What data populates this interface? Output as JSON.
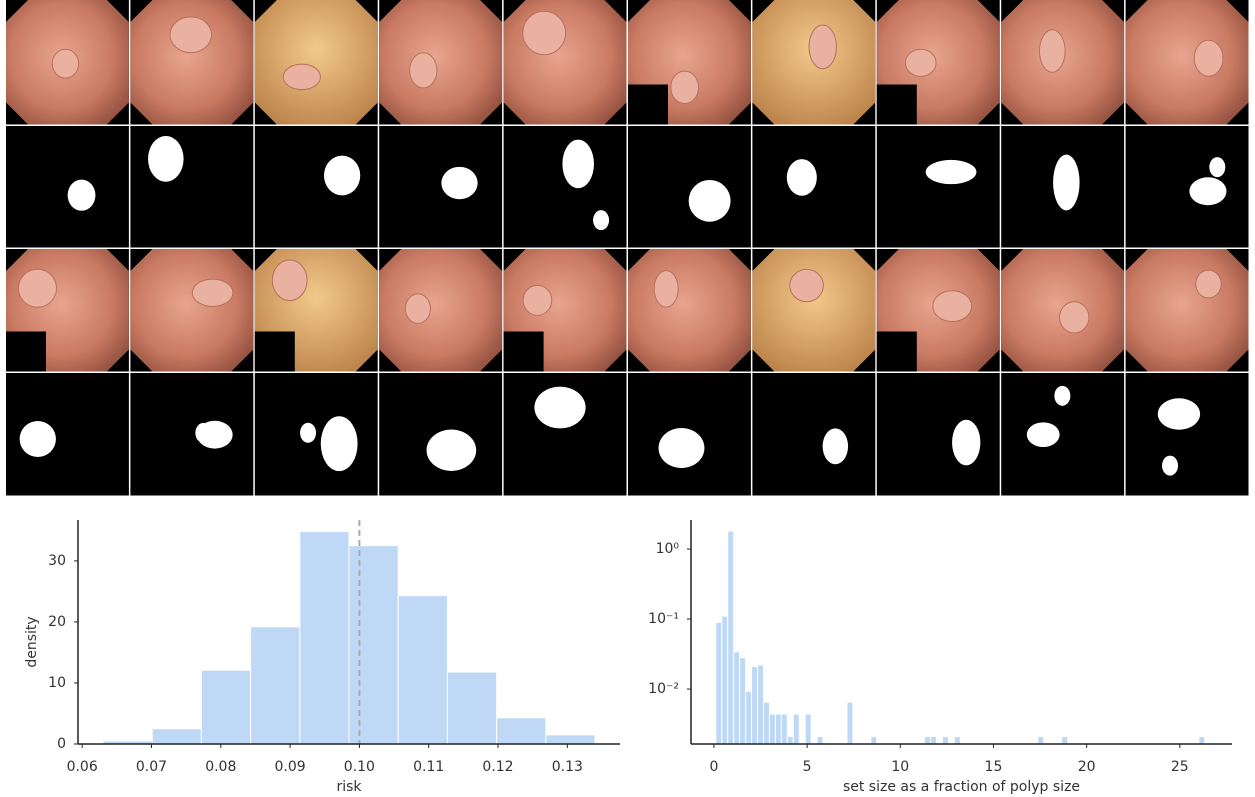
{
  "chart_data": [
    {
      "type": "histogram",
      "xlabel": "risk",
      "ylabel": "density",
      "color": "#bed8f5",
      "bins": [
        0.063,
        0.0701,
        0.0772,
        0.0843,
        0.0914,
        0.0985,
        0.1056,
        0.1127,
        0.1198,
        0.1269,
        0.134
      ],
      "values": [
        0.5,
        2.5,
        12.1,
        19.2,
        34.8,
        32.5,
        24.3,
        11.8,
        4.3,
        1.5
      ],
      "xlim": [
        0.0594,
        0.1376
      ],
      "ylim": [
        0,
        36.7
      ],
      "xticks": [
        0.06,
        0.07,
        0.08,
        0.09,
        {
          "value": 0.1,
          "label": "0.10"
        },
        0.11,
        0.12,
        0.13
      ],
      "yticks": [
        0,
        10,
        20,
        30
      ],
      "vline": 0.1,
      "vline_color": "#aaaaaa",
      "yscale": "linear"
    },
    {
      "type": "histogram",
      "xlabel": "set size as a fraction of polyp size",
      "color": "#bed8f5",
      "bins": [
        0.1,
        0.42,
        0.74,
        1.06,
        1.38,
        1.7,
        2.02,
        2.34,
        2.66,
        2.98,
        3.3,
        3.62,
        3.94,
        4.26,
        4.58,
        4.9,
        5.22,
        5.54,
        5.86,
        6.18,
        6.5,
        6.82,
        7.14,
        7.46,
        7.78,
        8.1,
        8.42,
        8.74,
        9.06,
        9.38,
        9.7,
        10.02,
        10.34,
        10.66,
        10.98,
        11.3,
        11.62,
        11.94,
        12.26,
        12.58,
        12.9,
        13.22,
        13.54,
        13.86,
        14.18,
        14.5,
        14.82,
        15.14,
        15.46,
        15.78,
        16.1,
        16.42,
        16.74,
        17.06,
        17.38,
        17.7,
        18.02,
        18.34,
        18.66,
        18.98,
        19.3,
        19.62,
        19.94,
        20.26,
        20.58,
        20.9,
        21.22,
        21.54,
        21.86,
        22.18,
        22.5,
        22.82,
        23.14,
        23.46,
        23.78,
        24.1,
        24.42,
        24.74,
        25.06,
        25.38,
        25.7,
        26.02,
        26.34
      ],
      "values": [
        0.09,
        0.11,
        1.8,
        0.034,
        0.028,
        0.0093,
        0.021,
        0.022,
        0.0065,
        0.0044,
        0.0044,
        0.0044,
        0.0021,
        0.0044,
        0,
        0.0044,
        0,
        0.0021,
        0,
        0,
        0,
        0,
        0.0065,
        0,
        0,
        0,
        0.0021,
        0,
        0,
        0,
        0,
        0,
        0,
        0,
        0,
        0.0021,
        0.0021,
        0,
        0.0021,
        0,
        0.0021,
        0,
        0,
        0,
        0,
        0,
        0,
        0,
        0,
        0,
        0,
        0,
        0,
        0,
        0.0021,
        0,
        0,
        0,
        0.0021,
        0,
        0,
        0,
        0,
        0,
        0,
        0,
        0,
        0,
        0,
        0,
        0,
        0,
        0,
        0,
        0,
        0,
        0,
        0,
        0,
        0,
        0,
        0.0021
      ],
      "xlim": [
        -1.23,
        27.8
      ],
      "ylim": [
        0.00164,
        2.6
      ],
      "xticks": [
        0,
        5,
        10,
        15,
        20,
        25
      ],
      "yticks": [
        {
          "value": 1,
          "label": "10⁰"
        },
        {
          "value": 0.1,
          "label": "10⁻¹"
        },
        {
          "value": 0.01,
          "label": "10⁻²"
        }
      ],
      "yscale": "log"
    }
  ]
}
